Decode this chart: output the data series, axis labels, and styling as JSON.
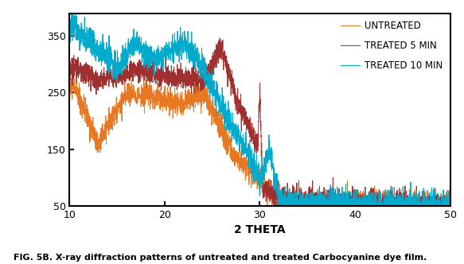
{
  "title": "",
  "xlabel": "2 THETA",
  "ylabel": "",
  "xlim": [
    10,
    50
  ],
  "ylim": [
    50,
    390
  ],
  "yticks": [
    50,
    150,
    250,
    350
  ],
  "xticks": [
    10,
    20,
    30,
    40,
    50
  ],
  "caption": "FIG. 5B. X-ray diffraction patterns of untreated and treated Carbocyanine dye film.",
  "legend_labels": [
    "UNTREATED",
    "TREATED 5 MIN",
    "TREATED 10 MIN"
  ],
  "colors": {
    "untreated": "#E87722",
    "treated5": "#A03030",
    "treated10": "#00AACC"
  },
  "fig_width": 5.83,
  "fig_height": 3.32,
  "dpi": 100
}
